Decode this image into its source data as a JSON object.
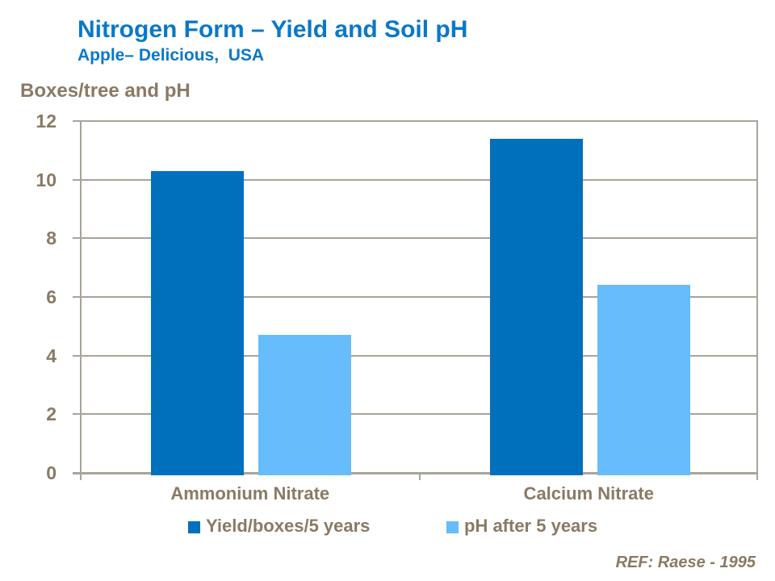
{
  "header": {
    "title": "Nitrogen Form – Yield and Soil pH",
    "subtitle": "Apple– Delicious,  USA"
  },
  "chart_data": {
    "type": "bar",
    "title": "Nitrogen Form – Yield and Soil pH",
    "subtitle": "Apple– Delicious, USA",
    "axis_unit_label": "Boxes/tree and pH",
    "categories": [
      "Ammonium Nitrate",
      "Calcium Nitrate"
    ],
    "series": [
      {
        "name": "Yield/boxes/5 years",
        "values": [
          10.3,
          11.4
        ],
        "color": "#0070bd"
      },
      {
        "name": "pH after 5 years",
        "values": [
          4.7,
          6.4
        ],
        "color": "#67bcfb"
      }
    ],
    "xlabel": "",
    "ylabel": "Boxes/tree and pH",
    "ylim": [
      0,
      12
    ],
    "yticks": [
      0,
      2,
      4,
      6,
      8,
      10,
      12
    ],
    "grid": "horizontal",
    "legend_position": "bottom"
  },
  "footer": {
    "ref": "REF: Raese - 1995"
  },
  "colors": {
    "title_blue": "#0a78c8",
    "text_brown": "#8a7a64",
    "gridline": "#aaa39a",
    "bar_yield": "#0070bd",
    "bar_ph": "#67bcfb",
    "background": "#ffffff"
  }
}
